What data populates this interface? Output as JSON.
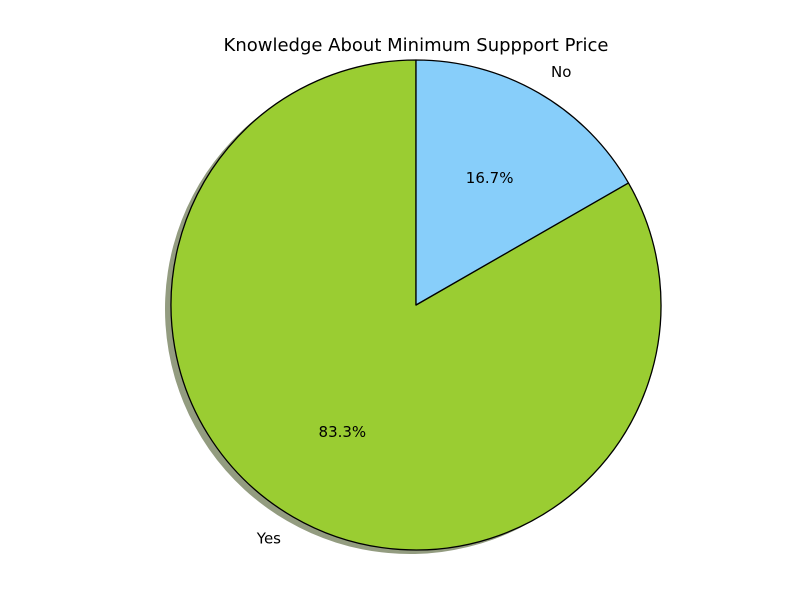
{
  "chart_data": {
    "type": "pie",
    "title": "Knowledge About Minimum Suppport Price",
    "slices": [
      {
        "label": "Yes",
        "value": 83.3,
        "pct_label": "83.3%",
        "color": "#9acd32"
      },
      {
        "label": "No",
        "value": 16.7,
        "pct_label": "16.7%",
        "color": "#87cefa"
      }
    ],
    "start_angle_deg": 90,
    "direction": "counterclockwise",
    "shadow": true,
    "legend": "none",
    "edge_color": "#000000",
    "shadow_color": "#939c80"
  }
}
